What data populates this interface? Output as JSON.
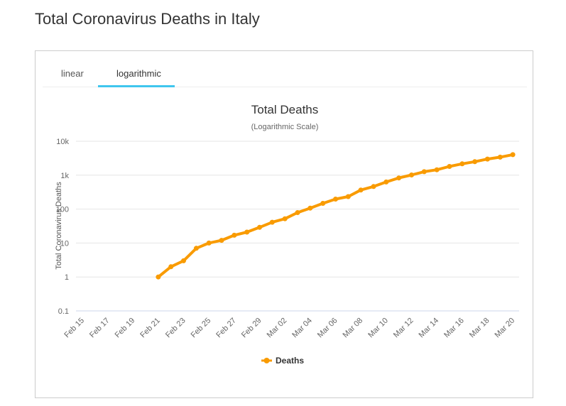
{
  "page": {
    "title": "Total Coronavirus Deaths in Italy"
  },
  "tabs": [
    {
      "label": "linear",
      "active": false
    },
    {
      "label": "logarithmic",
      "active": true
    }
  ],
  "colors": {
    "series": "#f99b00",
    "tab_accent": "#3fc6ee"
  },
  "chart_data": {
    "type": "line",
    "title": "Total Deaths",
    "subtitle": "(Logarithmic Scale)",
    "ylabel": "Total Coronavirus Deaths",
    "xlabel": "",
    "yscale": "log",
    "ylim": [
      0.1,
      10000
    ],
    "yticks": [
      {
        "value": 0.1,
        "label": "0.1"
      },
      {
        "value": 1,
        "label": "1"
      },
      {
        "value": 10,
        "label": "10"
      },
      {
        "value": 100,
        "label": "100"
      },
      {
        "value": 1000,
        "label": "1k"
      },
      {
        "value": 10000,
        "label": "10k"
      }
    ],
    "categories": [
      "Feb 15",
      "Feb 16",
      "Feb 17",
      "Feb 18",
      "Feb 19",
      "Feb 20",
      "Feb 21",
      "Feb 22",
      "Feb 23",
      "Feb 24",
      "Feb 25",
      "Feb 26",
      "Feb 27",
      "Feb 28",
      "Feb 29",
      "Mar 01",
      "Mar 02",
      "Mar 03",
      "Mar 04",
      "Mar 05",
      "Mar 06",
      "Mar 07",
      "Mar 08",
      "Mar 09",
      "Mar 10",
      "Mar 11",
      "Mar 12",
      "Mar 13",
      "Mar 14",
      "Mar 15",
      "Mar 16",
      "Mar 17",
      "Mar 18",
      "Mar 19",
      "Mar 20"
    ],
    "tick_labels": [
      "Feb 15",
      "Feb 17",
      "Feb 19",
      "Feb 21",
      "Feb 23",
      "Feb 25",
      "Feb 27",
      "Feb 29",
      "Mar 02",
      "Mar 04",
      "Mar 06",
      "Mar 08",
      "Mar 10",
      "Mar 12",
      "Mar 14",
      "Mar 16",
      "Mar 18",
      "Mar 20"
    ],
    "legend_position": "bottom-center",
    "series": [
      {
        "name": "Deaths",
        "values": [
          null,
          null,
          null,
          null,
          null,
          null,
          1,
          2,
          3,
          7,
          10,
          12,
          17,
          21,
          29,
          41,
          52,
          79,
          107,
          148,
          197,
          233,
          366,
          463,
          631,
          827,
          1016,
          1266,
          1441,
          1809,
          2158,
          2503,
          2978,
          3405,
          4032
        ]
      }
    ]
  }
}
